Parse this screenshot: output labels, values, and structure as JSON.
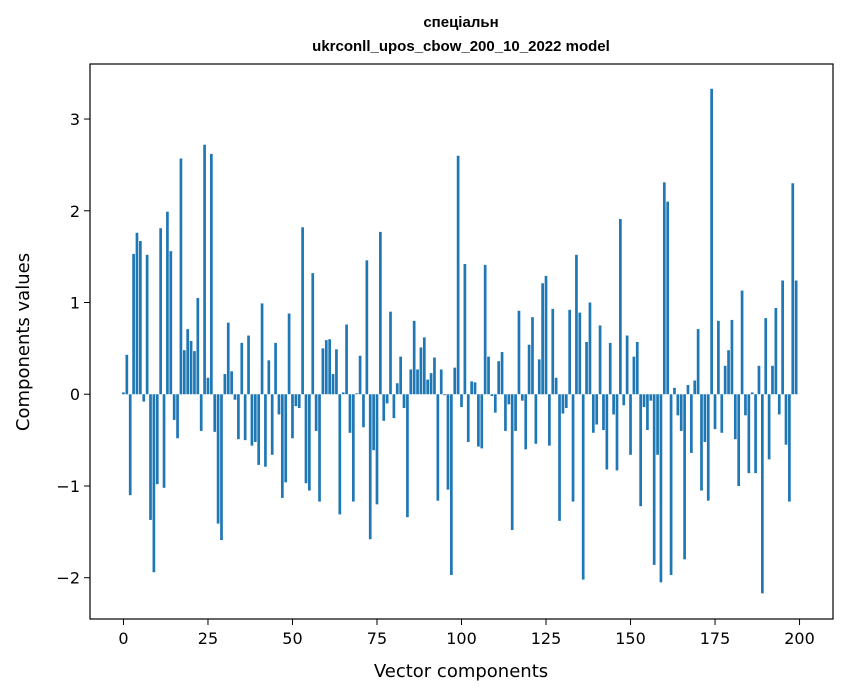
{
  "chart_data": {
    "type": "bar",
    "title_line1": "спеціальн",
    "title_line2": "ukrconll_upos_cbow_200_10_2022 model",
    "xlabel": "Vector components",
    "ylabel": "Components values",
    "xlim": [
      -9.9,
      209.9
    ],
    "ylim": [
      -2.45,
      3.6
    ],
    "xticks": [
      0,
      25,
      50,
      75,
      100,
      125,
      150,
      175,
      200
    ],
    "yticks": [
      -2,
      -1,
      0,
      1,
      2,
      3
    ],
    "ytick_labels": [
      "−2",
      "−1",
      "0",
      "1",
      "2",
      "3"
    ],
    "bar_color": "#1f77b4",
    "grid": false,
    "legend": "none",
    "values": [
      0.02,
      0.43,
      -1.1,
      1.53,
      1.76,
      1.67,
      -0.08,
      1.52,
      -1.37,
      -1.94,
      -0.98,
      1.81,
      -1.02,
      1.99,
      1.56,
      -0.28,
      -0.48,
      2.57,
      0.48,
      0.71,
      0.58,
      0.47,
      1.05,
      -0.4,
      2.72,
      0.18,
      2.62,
      -0.41,
      -1.41,
      -1.59,
      0.22,
      0.78,
      0.25,
      -0.06,
      -0.49,
      0.56,
      -0.5,
      0.64,
      -0.56,
      -0.52,
      -0.77,
      0.99,
      -0.79,
      0.37,
      -0.66,
      0.56,
      -0.22,
      -1.13,
      -0.96,
      0.88,
      -0.48,
      -0.13,
      -0.15,
      1.82,
      -0.97,
      -1.05,
      1.32,
      -0.4,
      -1.17,
      0.5,
      0.59,
      0.6,
      0.22,
      0.49,
      -1.31,
      0.02,
      0.76,
      -0.42,
      -1.17,
      0.01,
      0.42,
      -0.36,
      1.46,
      -1.58,
      -0.61,
      -1.2,
      1.77,
      -0.29,
      -0.1,
      0.9,
      -0.26,
      0.12,
      0.41,
      -0.15,
      -1.34,
      0.27,
      0.8,
      0.27,
      0.51,
      0.62,
      0.16,
      0.23,
      0.4,
      -1.16,
      0.27,
      -0.01,
      -1.04,
      -1.97,
      0.29,
      2.6,
      -0.14,
      1.42,
      -0.52,
      0.14,
      0.13,
      -0.57,
      -0.59,
      1.41,
      0.41,
      -0.02,
      -0.2,
      0.36,
      0.46,
      -0.4,
      -0.11,
      -1.48,
      -0.4,
      0.91,
      -0.07,
      -0.6,
      0.54,
      0.84,
      -0.54,
      0.38,
      1.21,
      1.29,
      -0.56,
      0.93,
      0.18,
      -1.38,
      -0.21,
      -0.15,
      0.92,
      -1.17,
      1.52,
      0.89,
      -2.02,
      0.57,
      1.0,
      -0.42,
      -0.33,
      0.75,
      -0.39,
      -0.82,
      0.56,
      -0.22,
      -0.83,
      1.91,
      -0.12,
      0.64,
      -0.66,
      0.41,
      0.57,
      -1.22,
      -0.14,
      -0.39,
      -0.07,
      -1.86,
      -0.66,
      -2.05,
      2.31,
      2.1,
      -1.97,
      0.07,
      -0.23,
      -0.4,
      -1.8,
      0.1,
      -0.64,
      0.15,
      0.71,
      -1.05,
      -0.52,
      -1.16,
      3.33,
      -0.38,
      0.8,
      -0.42,
      0.31,
      0.48,
      0.81,
      -0.49,
      -1.0,
      1.13,
      -0.23,
      -0.86,
      0.02,
      -0.86,
      0.31,
      -2.17,
      0.83,
      -0.71,
      0.31,
      0.94,
      -0.22,
      1.24,
      -0.55,
      -1.17,
      2.3,
      1.24
    ]
  }
}
